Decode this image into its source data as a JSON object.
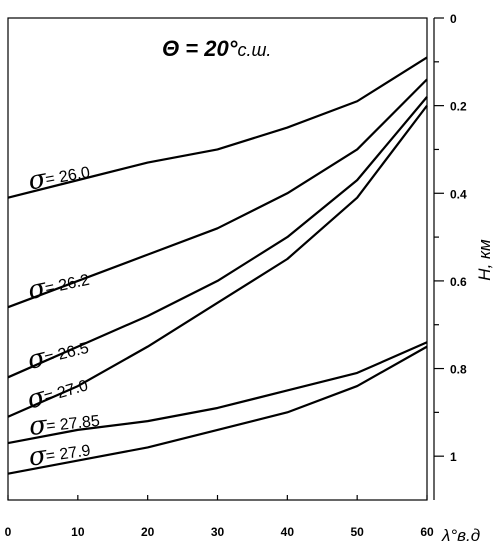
{
  "chart_data": {
    "type": "line",
    "title": {
      "symbol": "Θ",
      "equals": " = ",
      "value": "20°",
      "suffix": "с.ш."
    },
    "xlabel": "λ°в.д",
    "ylabel": "H, км",
    "xlim": [
      0,
      60
    ],
    "ylim": [
      0,
      1.1
    ],
    "y_inverted": true,
    "y_axis_side": "right",
    "x_ticks": [
      0,
      10,
      20,
      30,
      40,
      50,
      60
    ],
    "x_tick_labels": [
      "0",
      "10",
      "20",
      "30",
      "40",
      "50",
      "60"
    ],
    "y_ticks": [
      0,
      0.2,
      0.4,
      0.6,
      0.8,
      1.0
    ],
    "y_tick_labels": [
      "0",
      "0.2",
      "0.4",
      "0.6",
      "0.8",
      "1"
    ],
    "y_minor_ticks": [
      0.1,
      0.3,
      0.5,
      0.7,
      0.9
    ],
    "x": [
      0,
      10,
      20,
      30,
      40,
      50,
      60
    ],
    "series": [
      {
        "name": "σ = 26.0",
        "sigma": "σ",
        "label": "= 26.0",
        "values": [
          0.41,
          0.37,
          0.33,
          0.3,
          0.25,
          0.19,
          0.09
        ]
      },
      {
        "name": "σ = 26.2",
        "sigma": "σ",
        "label": "= 26.2",
        "values": [
          0.66,
          0.6,
          0.54,
          0.48,
          0.4,
          0.3,
          0.14
        ]
      },
      {
        "name": "σ = 26.5",
        "sigma": "σ",
        "label": "= 26.5",
        "values": [
          0.82,
          0.75,
          0.68,
          0.6,
          0.5,
          0.37,
          0.18
        ]
      },
      {
        "name": "σ = 27.0",
        "sigma": "σ",
        "label": "= 27.0",
        "values": [
          0.91,
          0.84,
          0.75,
          0.65,
          0.55,
          0.41,
          0.2
        ]
      },
      {
        "name": "σ = 27.85",
        "sigma": "σ",
        "label": "= 27.85",
        "values": [
          0.97,
          0.94,
          0.92,
          0.89,
          0.85,
          0.81,
          0.74
        ]
      },
      {
        "name": "σ = 27.9",
        "sigma": "σ",
        "label": "= 27.9",
        "values": [
          1.04,
          1.01,
          0.98,
          0.94,
          0.9,
          0.84,
          0.75
        ]
      }
    ],
    "grid": false
  }
}
